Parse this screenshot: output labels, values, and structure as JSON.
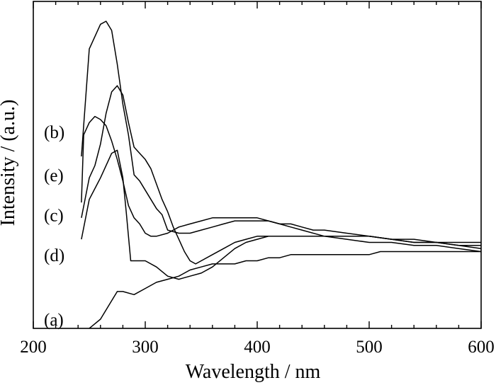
{
  "chart_data": {
    "type": "line",
    "title": "",
    "xlabel": "Wavelength / nm",
    "ylabel": "Intensity / (a.u.)",
    "xlim": [
      200,
      600
    ],
    "ylim": [
      0,
      100
    ],
    "xticks": [
      "200",
      "300",
      "400",
      "500",
      "600"
    ],
    "y_tick_labels_shown": false,
    "grid": false,
    "legend": "none",
    "series": [
      {
        "name": "(a)",
        "label_y": 3,
        "points": [
          [
            250,
            0
          ],
          [
            260,
            3
          ],
          [
            270,
            9
          ],
          [
            275,
            12
          ],
          [
            280,
            12
          ],
          [
            290,
            11
          ],
          [
            300,
            13
          ],
          [
            310,
            15
          ],
          [
            320,
            16
          ],
          [
            330,
            17
          ],
          [
            340,
            19
          ],
          [
            350,
            20
          ],
          [
            360,
            21
          ],
          [
            370,
            21
          ],
          [
            380,
            21
          ],
          [
            390,
            22
          ],
          [
            400,
            22
          ],
          [
            410,
            23
          ],
          [
            420,
            23
          ],
          [
            430,
            24
          ],
          [
            440,
            24
          ],
          [
            450,
            24
          ],
          [
            460,
            24
          ],
          [
            470,
            24
          ],
          [
            480,
            24
          ],
          [
            490,
            24
          ],
          [
            500,
            24
          ],
          [
            510,
            25
          ],
          [
            520,
            25
          ],
          [
            540,
            25
          ],
          [
            560,
            25
          ],
          [
            580,
            25
          ],
          [
            600,
            25
          ]
        ]
      },
      {
        "name": "(b)",
        "label_y": 64,
        "points": [
          [
            243,
            56
          ],
          [
            250,
            91
          ],
          [
            260,
            99
          ],
          [
            265,
            100
          ],
          [
            270,
            97
          ],
          [
            275,
            86
          ],
          [
            280,
            73
          ],
          [
            285,
            63
          ],
          [
            290,
            50
          ],
          [
            295,
            48
          ],
          [
            300,
            45
          ],
          [
            305,
            42
          ],
          [
            310,
            39
          ],
          [
            315,
            37
          ],
          [
            320,
            32
          ],
          [
            330,
            31
          ],
          [
            340,
            31
          ],
          [
            350,
            32
          ],
          [
            360,
            33
          ],
          [
            370,
            34
          ],
          [
            380,
            35
          ],
          [
            390,
            35
          ],
          [
            400,
            35
          ],
          [
            410,
            35
          ],
          [
            420,
            34
          ],
          [
            430,
            34
          ],
          [
            440,
            33
          ],
          [
            450,
            32
          ],
          [
            460,
            32
          ],
          [
            480,
            31
          ],
          [
            500,
            30
          ],
          [
            520,
            29
          ],
          [
            540,
            28
          ],
          [
            560,
            28
          ],
          [
            580,
            27
          ],
          [
            600,
            26
          ]
        ]
      },
      {
        "name": "(e)",
        "label_y": 50,
        "points": [
          [
            243,
            36
          ],
          [
            250,
            49
          ],
          [
            255,
            53
          ],
          [
            260,
            60
          ],
          [
            265,
            70
          ],
          [
            270,
            77
          ],
          [
            275,
            79
          ],
          [
            280,
            76
          ],
          [
            285,
            67
          ],
          [
            290,
            59
          ],
          [
            295,
            57
          ],
          [
            300,
            55
          ],
          [
            305,
            52
          ],
          [
            310,
            47
          ],
          [
            315,
            42
          ],
          [
            320,
            38
          ],
          [
            325,
            33
          ],
          [
            330,
            29
          ],
          [
            335,
            25
          ],
          [
            340,
            22
          ],
          [
            345,
            21
          ],
          [
            350,
            22
          ],
          [
            360,
            24
          ],
          [
            370,
            26
          ],
          [
            380,
            28
          ],
          [
            390,
            29
          ],
          [
            400,
            30
          ],
          [
            410,
            30
          ],
          [
            420,
            30
          ],
          [
            430,
            30
          ],
          [
            440,
            30
          ],
          [
            460,
            30
          ],
          [
            480,
            30
          ],
          [
            500,
            30
          ],
          [
            520,
            29
          ],
          [
            540,
            28
          ],
          [
            560,
            28
          ],
          [
            580,
            27
          ],
          [
            600,
            27
          ]
        ]
      },
      {
        "name": "(c)",
        "label_y": 37,
        "points": [
          [
            243,
            41
          ],
          [
            245,
            63
          ],
          [
            250,
            67
          ],
          [
            255,
            69
          ],
          [
            260,
            68
          ],
          [
            265,
            66
          ],
          [
            270,
            61
          ],
          [
            275,
            55
          ],
          [
            280,
            48
          ],
          [
            285,
            40
          ],
          [
            290,
            36
          ],
          [
            295,
            34
          ],
          [
            300,
            31
          ],
          [
            305,
            30
          ],
          [
            310,
            30
          ],
          [
            320,
            31
          ],
          [
            330,
            33
          ],
          [
            340,
            34
          ],
          [
            350,
            35
          ],
          [
            360,
            36
          ],
          [
            370,
            36
          ],
          [
            380,
            36
          ],
          [
            390,
            36
          ],
          [
            400,
            36
          ],
          [
            410,
            35
          ],
          [
            420,
            34
          ],
          [
            430,
            33
          ],
          [
            440,
            32
          ],
          [
            460,
            30
          ],
          [
            480,
            29
          ],
          [
            500,
            28
          ],
          [
            520,
            28
          ],
          [
            540,
            27
          ],
          [
            560,
            27
          ],
          [
            580,
            26
          ],
          [
            600,
            25
          ]
        ]
      },
      {
        "name": "(d)",
        "label_y": 24,
        "points": [
          [
            243,
            29
          ],
          [
            250,
            42
          ],
          [
            260,
            49
          ],
          [
            270,
            57
          ],
          [
            275,
            58
          ],
          [
            280,
            49
          ],
          [
            283,
            38
          ],
          [
            285,
            30
          ],
          [
            287,
            22
          ],
          [
            290,
            22
          ],
          [
            300,
            22
          ],
          [
            310,
            20
          ],
          [
            320,
            17
          ],
          [
            330,
            16
          ],
          [
            340,
            17
          ],
          [
            350,
            18
          ],
          [
            360,
            20
          ],
          [
            370,
            23
          ],
          [
            380,
            26
          ],
          [
            390,
            28
          ],
          [
            400,
            29
          ],
          [
            410,
            30
          ],
          [
            420,
            30
          ],
          [
            430,
            30
          ],
          [
            440,
            30
          ],
          [
            460,
            30
          ],
          [
            480,
            30
          ],
          [
            500,
            30
          ],
          [
            520,
            29
          ],
          [
            540,
            29
          ],
          [
            560,
            28
          ],
          [
            580,
            28
          ],
          [
            600,
            28
          ]
        ]
      }
    ]
  }
}
